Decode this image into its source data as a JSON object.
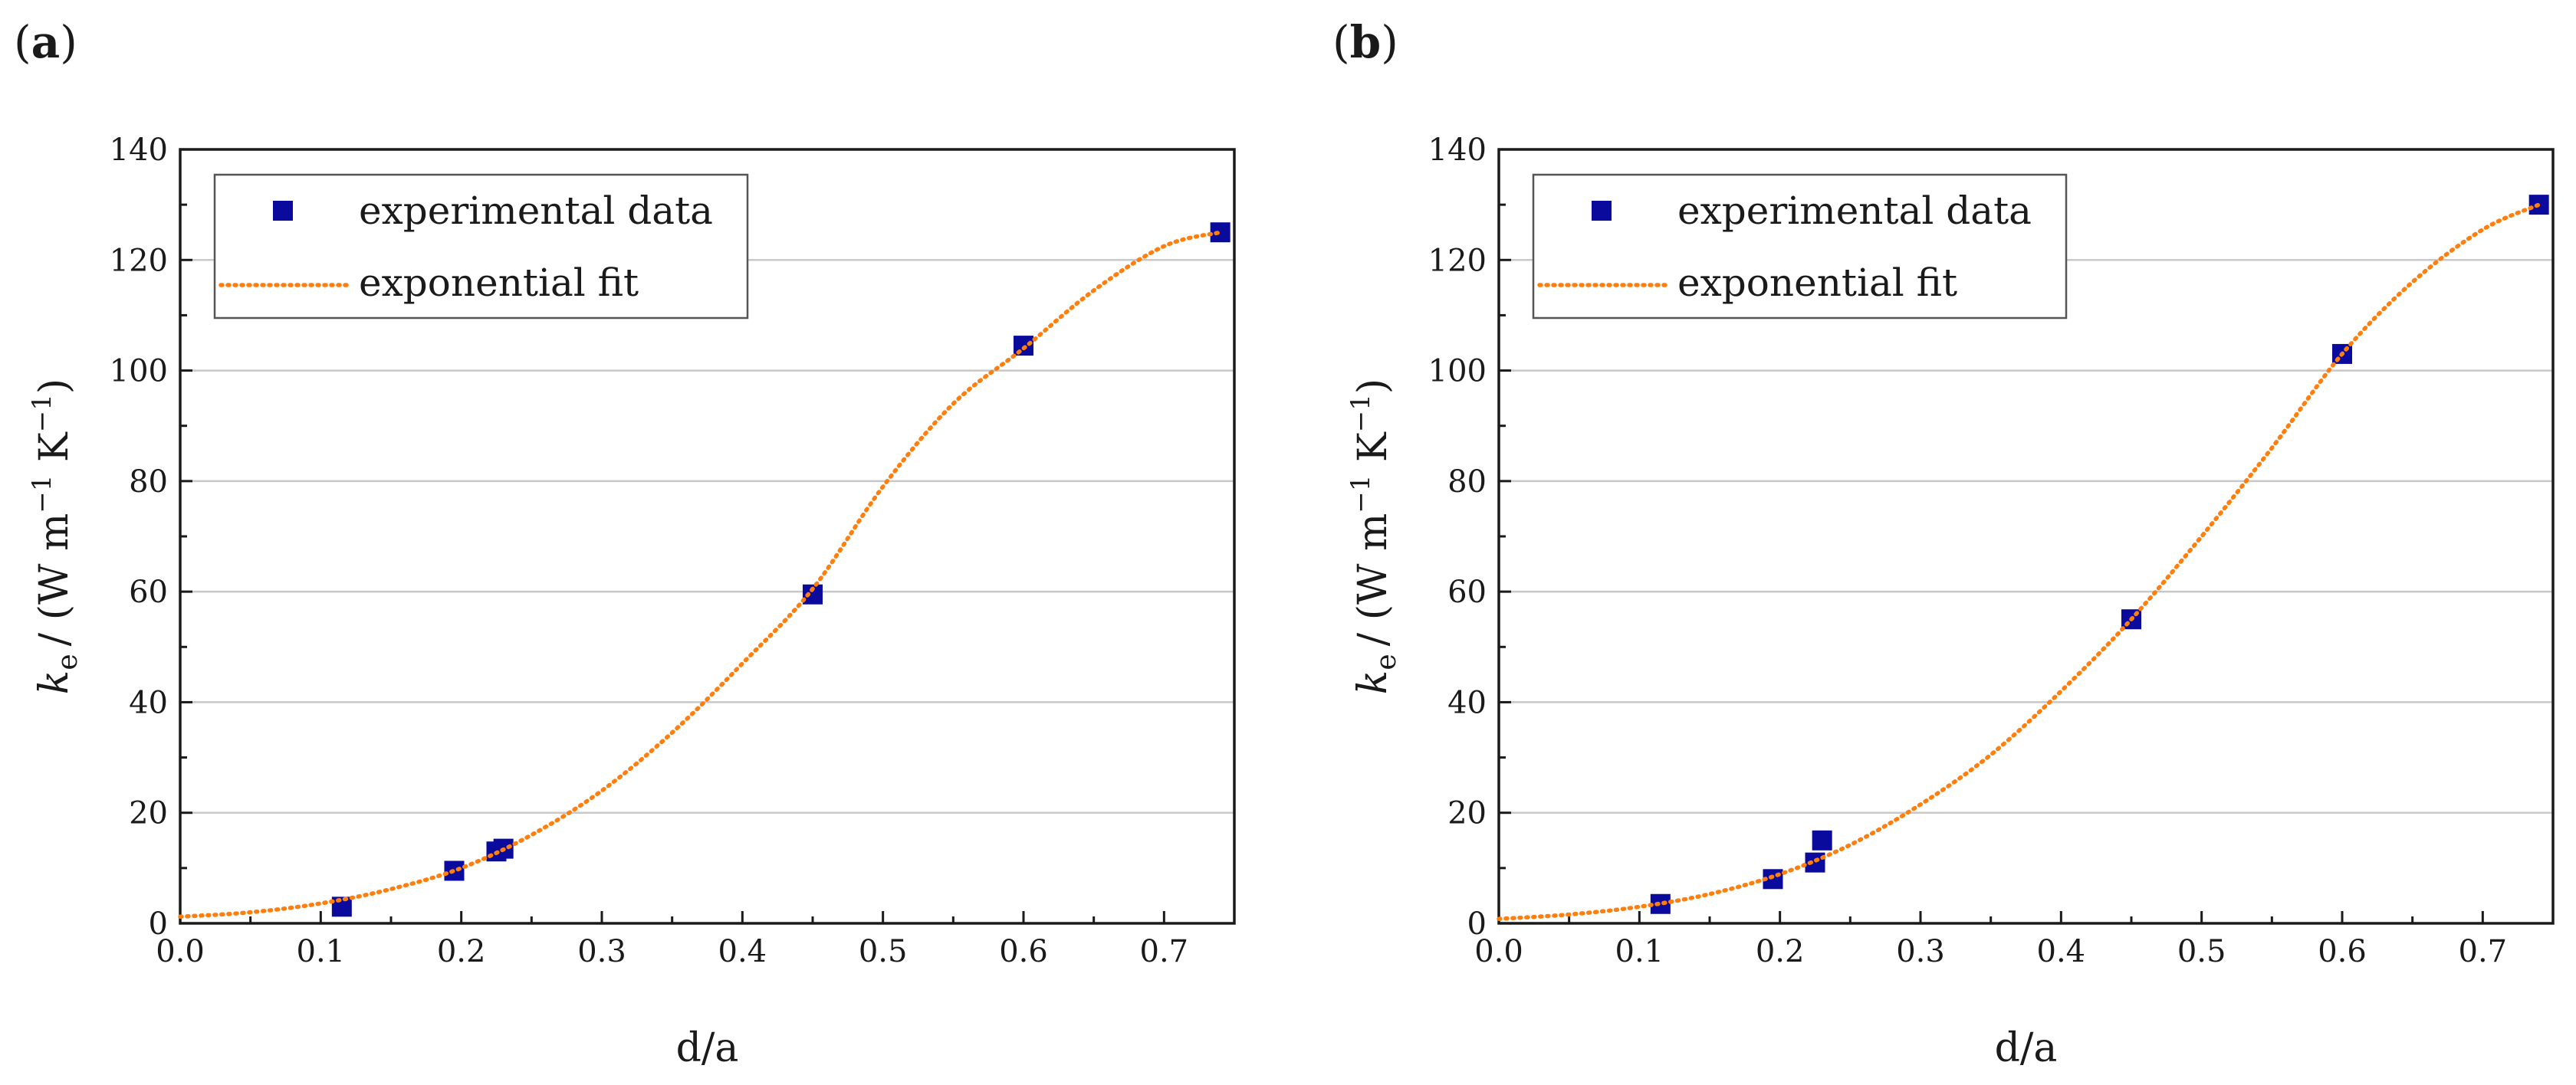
{
  "chart_data": [
    {
      "type": "scatter",
      "panel_label": "a",
      "panel_paren_open": "(",
      "panel_paren_close": ")",
      "xlabel": "d/a",
      "ylabel": {
        "symbol": "k",
        "subscript": "e",
        "unit_text": "/ (W m",
        "exp1": "−1",
        "mid": " K",
        "exp2": "−1",
        "close": ")"
      },
      "xlim": [
        0.0,
        0.75
      ],
      "ylim": [
        0,
        140
      ],
      "xticks": [
        "0.0",
        "0.1",
        "0.2",
        "0.3",
        "0.4",
        "0.5",
        "0.6",
        "0.7"
      ],
      "yticks": [
        "0",
        "20",
        "40",
        "60",
        "80",
        "100",
        "120",
        "140"
      ],
      "grid": "horizontal",
      "legend_position": "top-left",
      "series": [
        {
          "name": "experimental data",
          "kind": "points",
          "color": "#0a0a9c",
          "x": [
            0.115,
            0.195,
            0.225,
            0.23,
            0.45,
            0.6,
            0.74
          ],
          "y": [
            3.0,
            9.5,
            13.0,
            13.5,
            59.5,
            104.5,
            125.0
          ]
        },
        {
          "name": "exponential fit",
          "kind": "line",
          "color": "#ff7f0e",
          "x": [
            0.0,
            0.05,
            0.1,
            0.15,
            0.2,
            0.25,
            0.3,
            0.35,
            0.4,
            0.45,
            0.5,
            0.55,
            0.6,
            0.65,
            0.7,
            0.74
          ],
          "y": [
            1.2,
            2.0,
            3.6,
            6.2,
            10.0,
            16.0,
            24.0,
            34.5,
            47.0,
            60.5,
            79.0,
            94.0,
            104.0,
            114.5,
            122.5,
            125.0
          ]
        }
      ]
    },
    {
      "type": "scatter",
      "panel_label": "b",
      "panel_paren_open": "(",
      "panel_paren_close": ")",
      "xlabel": "d/a",
      "ylabel": {
        "symbol": "k",
        "subscript": "e",
        "unit_text": "/ (W m",
        "exp1": "−1",
        "mid": " K",
        "exp2": "−1",
        "close": ")"
      },
      "xlim": [
        0.0,
        0.75
      ],
      "ylim": [
        0,
        140
      ],
      "xticks": [
        "0.0",
        "0.1",
        "0.2",
        "0.3",
        "0.4",
        "0.5",
        "0.6",
        "0.7"
      ],
      "yticks": [
        "0",
        "20",
        "40",
        "60",
        "80",
        "100",
        "120",
        "140"
      ],
      "grid": "horizontal",
      "legend_position": "top-left",
      "series": [
        {
          "name": "experimental data",
          "kind": "points",
          "color": "#0a0a9c",
          "x": [
            0.115,
            0.195,
            0.225,
            0.23,
            0.45,
            0.6,
            0.74
          ],
          "y": [
            3.5,
            8.0,
            11.0,
            15.0,
            55.0,
            103.0,
            130.0
          ]
        },
        {
          "name": "exponential fit",
          "kind": "line",
          "color": "#ff7f0e",
          "x": [
            0.0,
            0.05,
            0.1,
            0.15,
            0.2,
            0.25,
            0.3,
            0.35,
            0.4,
            0.45,
            0.5,
            0.55,
            0.6,
            0.65,
            0.7,
            0.74
          ],
          "y": [
            0.8,
            1.6,
            3.0,
            5.3,
            8.9,
            14.2,
            21.5,
            30.5,
            42.0,
            55.0,
            70.0,
            86.0,
            103.0,
            116.0,
            125.5,
            130.0
          ]
        }
      ]
    }
  ]
}
